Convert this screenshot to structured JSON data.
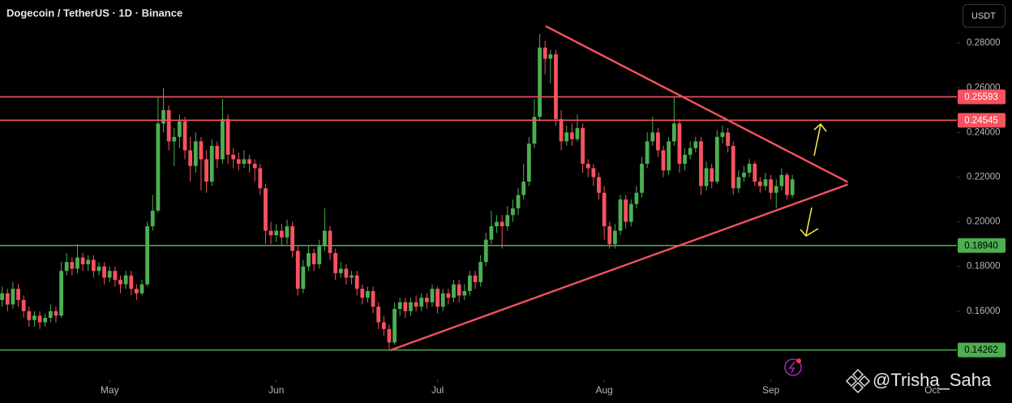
{
  "chart_data": {
    "type": "candlestick",
    "title": "Dogecoin / TetherUS · 1D · Binance",
    "currency": "USDT",
    "watermark": "@Trisha_Saha",
    "up_color": "#4caf50",
    "down_color": "#f7525f",
    "grid": false,
    "xlim": [
      -0.4,
      177.6
    ],
    "xticks": [
      {
        "value": 20,
        "label": "May"
      },
      {
        "value": 51,
        "label": "Jun"
      },
      {
        "value": 81,
        "label": "Jul"
      },
      {
        "value": 112,
        "label": "Aug"
      },
      {
        "value": 143,
        "label": "Sep"
      },
      {
        "value": 173,
        "label": "Oct"
      }
    ],
    "ylim": [
      0.1305,
      0.2993
    ],
    "yticks": [
      {
        "value": 0.16,
        "label": "0.16000"
      },
      {
        "value": 0.18,
        "label": "0.18000"
      },
      {
        "value": 0.2,
        "label": "0.20000"
      },
      {
        "value": 0.22,
        "label": "0.22000"
      },
      {
        "value": 0.24,
        "label": "0.24000"
      },
      {
        "value": 0.26,
        "label": "0.26000"
      },
      {
        "value": 0.28,
        "label": "0.28000"
      }
    ],
    "levels": [
      {
        "value": 0.25593,
        "label": "0.25593",
        "color": "#f7525f"
      },
      {
        "value": 0.24545,
        "label": "0.24545",
        "color": "#f7525f"
      },
      {
        "value": 0.1894,
        "label": "0.18940",
        "color": "#4caf50"
      },
      {
        "value": 0.14262,
        "label": "0.14262",
        "color": "#4caf50"
      }
    ],
    "trendlines": [
      {
        "x": [
          101.1,
          157.3
        ],
        "y": [
          0.2876,
          0.2178
        ],
        "color": "#f7525f"
      },
      {
        "x": [
          72.2,
          157.3
        ],
        "y": [
          0.1425,
          0.2167
        ],
        "color": "#f7525f"
      }
    ],
    "ohlc": [
      [
        0.165,
        0.171,
        0.162,
        0.168
      ],
      [
        0.168,
        0.17,
        0.16,
        0.163
      ],
      [
        0.163,
        0.173,
        0.161,
        0.17
      ],
      [
        0.17,
        0.172,
        0.162,
        0.165
      ],
      [
        0.165,
        0.167,
        0.157,
        0.16
      ],
      [
        0.16,
        0.162,
        0.153,
        0.156
      ],
      [
        0.156,
        0.16,
        0.153,
        0.158
      ],
      [
        0.158,
        0.16,
        0.152,
        0.155
      ],
      [
        0.155,
        0.159,
        0.153,
        0.157
      ],
      [
        0.157,
        0.163,
        0.155,
        0.16
      ],
      [
        0.16,
        0.162,
        0.155,
        0.158
      ],
      [
        0.158,
        0.182,
        0.157,
        0.178
      ],
      [
        0.178,
        0.186,
        0.176,
        0.182
      ],
      [
        0.182,
        0.184,
        0.176,
        0.179
      ],
      [
        0.179,
        0.19,
        0.177,
        0.184
      ],
      [
        0.184,
        0.186,
        0.178,
        0.181
      ],
      [
        0.181,
        0.185,
        0.178,
        0.183
      ],
      [
        0.183,
        0.185,
        0.175,
        0.178
      ],
      [
        0.178,
        0.182,
        0.176,
        0.18
      ],
      [
        0.18,
        0.182,
        0.172,
        0.175
      ],
      [
        0.175,
        0.18,
        0.173,
        0.178
      ],
      [
        0.178,
        0.18,
        0.171,
        0.174
      ],
      [
        0.174,
        0.176,
        0.168,
        0.172
      ],
      [
        0.172,
        0.178,
        0.17,
        0.176
      ],
      [
        0.176,
        0.178,
        0.167,
        0.17
      ],
      [
        0.17,
        0.172,
        0.165,
        0.168
      ],
      [
        0.168,
        0.174,
        0.167,
        0.172
      ],
      [
        0.172,
        0.2,
        0.171,
        0.198
      ],
      [
        0.198,
        0.212,
        0.196,
        0.205
      ],
      [
        0.205,
        0.256,
        0.204,
        0.244
      ],
      [
        0.244,
        0.26,
        0.24,
        0.25
      ],
      [
        0.25,
        0.252,
        0.232,
        0.236
      ],
      [
        0.236,
        0.242,
        0.225,
        0.238
      ],
      [
        0.238,
        0.248,
        0.233,
        0.245
      ],
      [
        0.245,
        0.247,
        0.228,
        0.232
      ],
      [
        0.232,
        0.238,
        0.218,
        0.225
      ],
      [
        0.225,
        0.24,
        0.222,
        0.236
      ],
      [
        0.236,
        0.238,
        0.214,
        0.228
      ],
      [
        0.228,
        0.232,
        0.213,
        0.218
      ],
      [
        0.218,
        0.237,
        0.216,
        0.234
      ],
      [
        0.234,
        0.236,
        0.224,
        0.228
      ],
      [
        0.228,
        0.255,
        0.226,
        0.246
      ],
      [
        0.246,
        0.248,
        0.226,
        0.23
      ],
      [
        0.23,
        0.233,
        0.224,
        0.228
      ],
      [
        0.228,
        0.231,
        0.223,
        0.226
      ],
      [
        0.226,
        0.232,
        0.224,
        0.228
      ],
      [
        0.228,
        0.23,
        0.222,
        0.226
      ],
      [
        0.226,
        0.228,
        0.218,
        0.224
      ],
      [
        0.224,
        0.226,
        0.212,
        0.215
      ],
      [
        0.215,
        0.217,
        0.19,
        0.196
      ],
      [
        0.196,
        0.2,
        0.19,
        0.194
      ],
      [
        0.194,
        0.199,
        0.191,
        0.196
      ],
      [
        0.196,
        0.199,
        0.189,
        0.193
      ],
      [
        0.193,
        0.201,
        0.19,
        0.198
      ],
      [
        0.198,
        0.2,
        0.184,
        0.187
      ],
      [
        0.187,
        0.189,
        0.167,
        0.17
      ],
      [
        0.17,
        0.183,
        0.168,
        0.18
      ],
      [
        0.18,
        0.189,
        0.178,
        0.186
      ],
      [
        0.186,
        0.188,
        0.178,
        0.181
      ],
      [
        0.181,
        0.192,
        0.179,
        0.189
      ],
      [
        0.189,
        0.206,
        0.187,
        0.196
      ],
      [
        0.196,
        0.198,
        0.183,
        0.186
      ],
      [
        0.186,
        0.188,
        0.174,
        0.177
      ],
      [
        0.177,
        0.182,
        0.175,
        0.179
      ],
      [
        0.179,
        0.181,
        0.172,
        0.175
      ],
      [
        0.175,
        0.178,
        0.172,
        0.176
      ],
      [
        0.176,
        0.178,
        0.167,
        0.17
      ],
      [
        0.17,
        0.172,
        0.163,
        0.166
      ],
      [
        0.166,
        0.171,
        0.164,
        0.169
      ],
      [
        0.169,
        0.171,
        0.159,
        0.162
      ],
      [
        0.162,
        0.164,
        0.152,
        0.155
      ],
      [
        0.155,
        0.158,
        0.149,
        0.152
      ],
      [
        0.152,
        0.154,
        0.143,
        0.146
      ],
      [
        0.146,
        0.164,
        0.145,
        0.161
      ],
      [
        0.161,
        0.166,
        0.158,
        0.164
      ],
      [
        0.164,
        0.166,
        0.157,
        0.16
      ],
      [
        0.16,
        0.166,
        0.158,
        0.164
      ],
      [
        0.164,
        0.167,
        0.16,
        0.162
      ],
      [
        0.162,
        0.168,
        0.16,
        0.166
      ],
      [
        0.166,
        0.168,
        0.161,
        0.164
      ],
      [
        0.164,
        0.172,
        0.162,
        0.17
      ],
      [
        0.17,
        0.171,
        0.159,
        0.162
      ],
      [
        0.162,
        0.17,
        0.16,
        0.168
      ],
      [
        0.168,
        0.17,
        0.163,
        0.166
      ],
      [
        0.166,
        0.174,
        0.164,
        0.172
      ],
      [
        0.172,
        0.174,
        0.164,
        0.167
      ],
      [
        0.167,
        0.172,
        0.165,
        0.169
      ],
      [
        0.169,
        0.178,
        0.167,
        0.176
      ],
      [
        0.176,
        0.178,
        0.17,
        0.173
      ],
      [
        0.173,
        0.185,
        0.171,
        0.182
      ],
      [
        0.182,
        0.195,
        0.18,
        0.192
      ],
      [
        0.192,
        0.205,
        0.19,
        0.198
      ],
      [
        0.198,
        0.203,
        0.195,
        0.2
      ],
      [
        0.2,
        0.203,
        0.188,
        0.198
      ],
      [
        0.198,
        0.207,
        0.196,
        0.203
      ],
      [
        0.203,
        0.21,
        0.2,
        0.206
      ],
      [
        0.206,
        0.215,
        0.203,
        0.212
      ],
      [
        0.212,
        0.226,
        0.21,
        0.218
      ],
      [
        0.218,
        0.238,
        0.216,
        0.235
      ],
      [
        0.235,
        0.255,
        0.233,
        0.247
      ],
      [
        0.247,
        0.284,
        0.245,
        0.278
      ],
      [
        0.278,
        0.281,
        0.266,
        0.273
      ],
      [
        0.273,
        0.277,
        0.262,
        0.275
      ],
      [
        0.275,
        0.277,
        0.243,
        0.246
      ],
      [
        0.246,
        0.25,
        0.232,
        0.236
      ],
      [
        0.236,
        0.243,
        0.234,
        0.24
      ],
      [
        0.24,
        0.244,
        0.234,
        0.237
      ],
      [
        0.237,
        0.248,
        0.236,
        0.242
      ],
      [
        0.242,
        0.244,
        0.222,
        0.226
      ],
      [
        0.226,
        0.228,
        0.22,
        0.224
      ],
      [
        0.224,
        0.226,
        0.216,
        0.22
      ],
      [
        0.22,
        0.222,
        0.21,
        0.213
      ],
      [
        0.213,
        0.216,
        0.192,
        0.198
      ],
      [
        0.198,
        0.2,
        0.188,
        0.19
      ],
      [
        0.19,
        0.199,
        0.188,
        0.196
      ],
      [
        0.196,
        0.212,
        0.194,
        0.21
      ],
      [
        0.21,
        0.212,
        0.197,
        0.2
      ],
      [
        0.2,
        0.21,
        0.198,
        0.208
      ],
      [
        0.208,
        0.216,
        0.206,
        0.213
      ],
      [
        0.213,
        0.229,
        0.211,
        0.226
      ],
      [
        0.226,
        0.24,
        0.224,
        0.236
      ],
      [
        0.236,
        0.247,
        0.234,
        0.24
      ],
      [
        0.24,
        0.242,
        0.229,
        0.232
      ],
      [
        0.232,
        0.234,
        0.22,
        0.223
      ],
      [
        0.223,
        0.238,
        0.221,
        0.236
      ],
      [
        0.236,
        0.256,
        0.234,
        0.244
      ],
      [
        0.244,
        0.246,
        0.222,
        0.226
      ],
      [
        0.226,
        0.233,
        0.223,
        0.23
      ],
      [
        0.23,
        0.236,
        0.228,
        0.233
      ],
      [
        0.233,
        0.238,
        0.231,
        0.236
      ],
      [
        0.236,
        0.238,
        0.212,
        0.216
      ],
      [
        0.216,
        0.227,
        0.214,
        0.224
      ],
      [
        0.224,
        0.226,
        0.215,
        0.218
      ],
      [
        0.218,
        0.241,
        0.217,
        0.238
      ],
      [
        0.238,
        0.243,
        0.235,
        0.24
      ],
      [
        0.24,
        0.242,
        0.231,
        0.234
      ],
      [
        0.234,
        0.236,
        0.212,
        0.215
      ],
      [
        0.215,
        0.223,
        0.213,
        0.22
      ],
      [
        0.22,
        0.225,
        0.218,
        0.222
      ],
      [
        0.222,
        0.228,
        0.22,
        0.226
      ],
      [
        0.226,
        0.227,
        0.216,
        0.218
      ],
      [
        0.218,
        0.22,
        0.213,
        0.216
      ],
      [
        0.216,
        0.222,
        0.214,
        0.219
      ],
      [
        0.219,
        0.221,
        0.21,
        0.213
      ],
      [
        0.213,
        0.219,
        0.206,
        0.216
      ],
      [
        0.216,
        0.224,
        0.214,
        0.221
      ],
      [
        0.221,
        0.222,
        0.21,
        0.212
      ],
      [
        0.212,
        0.221,
        0.211,
        0.219
      ]
    ]
  }
}
